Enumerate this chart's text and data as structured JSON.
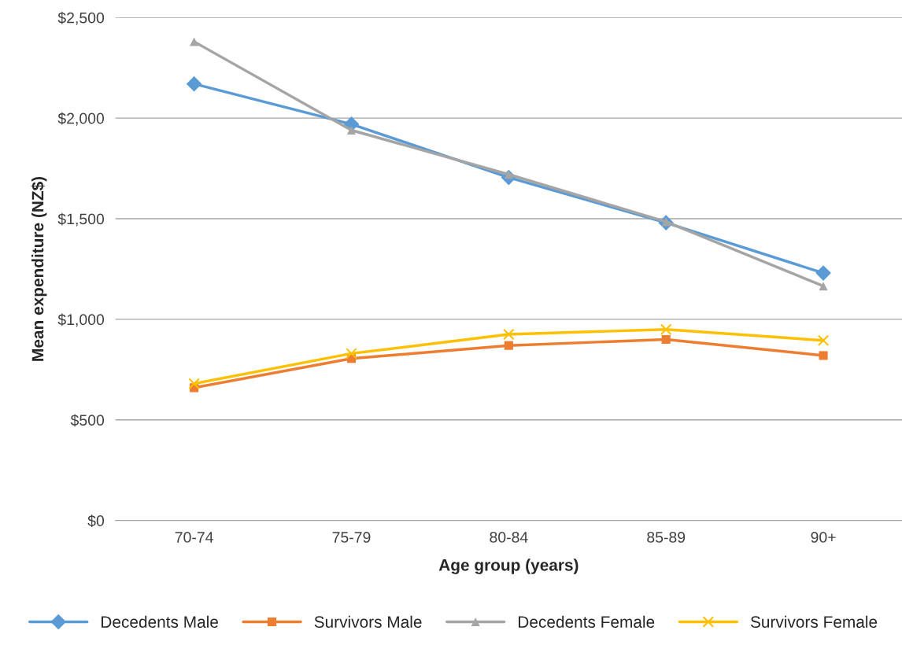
{
  "chart_data": {
    "type": "line",
    "xlabel": "Age group (years)",
    "ylabel": "Mean expenditure (NZ$)",
    "categories": [
      "70-74",
      "75-79",
      "80-84",
      "85-89",
      "90+"
    ],
    "series": [
      {
        "name": "Decedents Male",
        "color": "#5b9bd5",
        "marker": "diamond",
        "values": [
          2170,
          1970,
          1705,
          1480,
          1230
        ]
      },
      {
        "name": "Survivors Male",
        "color": "#ed7d31",
        "marker": "square",
        "values": [
          660,
          805,
          870,
          900,
          820
        ]
      },
      {
        "name": "Decedents Female",
        "color": "#a5a5a5",
        "marker": "triangle",
        "values": [
          2380,
          1940,
          1720,
          1485,
          1165
        ]
      },
      {
        "name": "Survivors Female",
        "color": "#ffc000",
        "marker": "cross",
        "values": [
          680,
          830,
          925,
          950,
          895
        ]
      }
    ],
    "ylim": [
      0,
      2500
    ],
    "yticks": [
      {
        "value": 0,
        "label": "$0"
      },
      {
        "value": 500,
        "label": "$500"
      },
      {
        "value": 1000,
        "label": "$1,000"
      },
      {
        "value": 1500,
        "label": "$1,500"
      },
      {
        "value": 2000,
        "label": "$2,000"
      },
      {
        "value": 2500,
        "label": "$2,500"
      }
    ],
    "grid": "y",
    "legend": "bottom",
    "line_style": "solid"
  }
}
